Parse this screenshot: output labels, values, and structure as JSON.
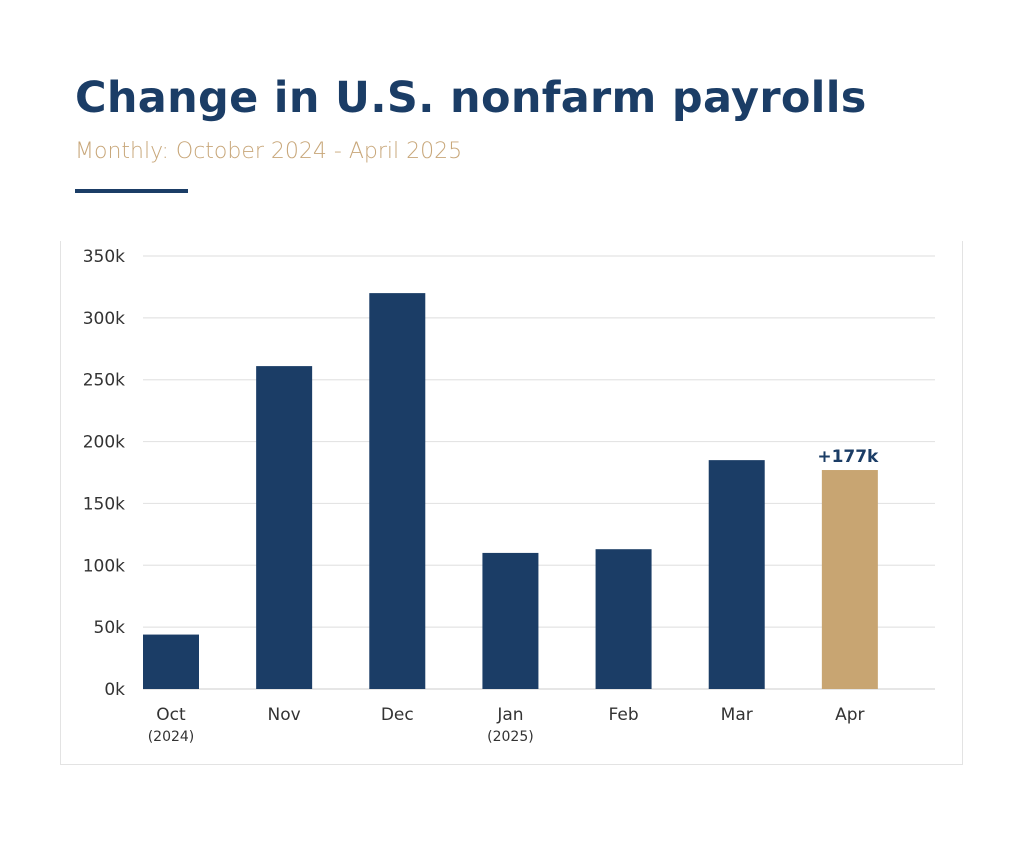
{
  "title": "Change in U.S. nonfarm payrolls",
  "subtitle": "Monthly: October 2024 - April 2025",
  "colors": {
    "navy": "#1b3d66",
    "gold": "#c8a572",
    "subtitle_gold": "#c8a77a",
    "grid": "#e4e4e4"
  },
  "chart_data": {
    "type": "bar",
    "categories": [
      "Oct",
      "Nov",
      "Dec",
      "Jan",
      "Feb",
      "Mar",
      "Apr"
    ],
    "category_sublabels": [
      "(2024)",
      "",
      "",
      "(2025)",
      "",
      "",
      ""
    ],
    "values": [
      44,
      261,
      320,
      110,
      113,
      185,
      177
    ],
    "value_unit": "k",
    "highlight_index": 6,
    "data_labels": [
      "",
      "",
      "",
      "",
      "",
      "",
      "+177k"
    ],
    "y_ticks": [
      "0k",
      "50k",
      "100k",
      "150k",
      "200k",
      "250k",
      "300k",
      "350k"
    ],
    "ylim": [
      0,
      350
    ],
    "grid": true,
    "legend": "none",
    "title": "Change in U.S. nonfarm payrolls",
    "xlabel": "",
    "ylabel": ""
  }
}
